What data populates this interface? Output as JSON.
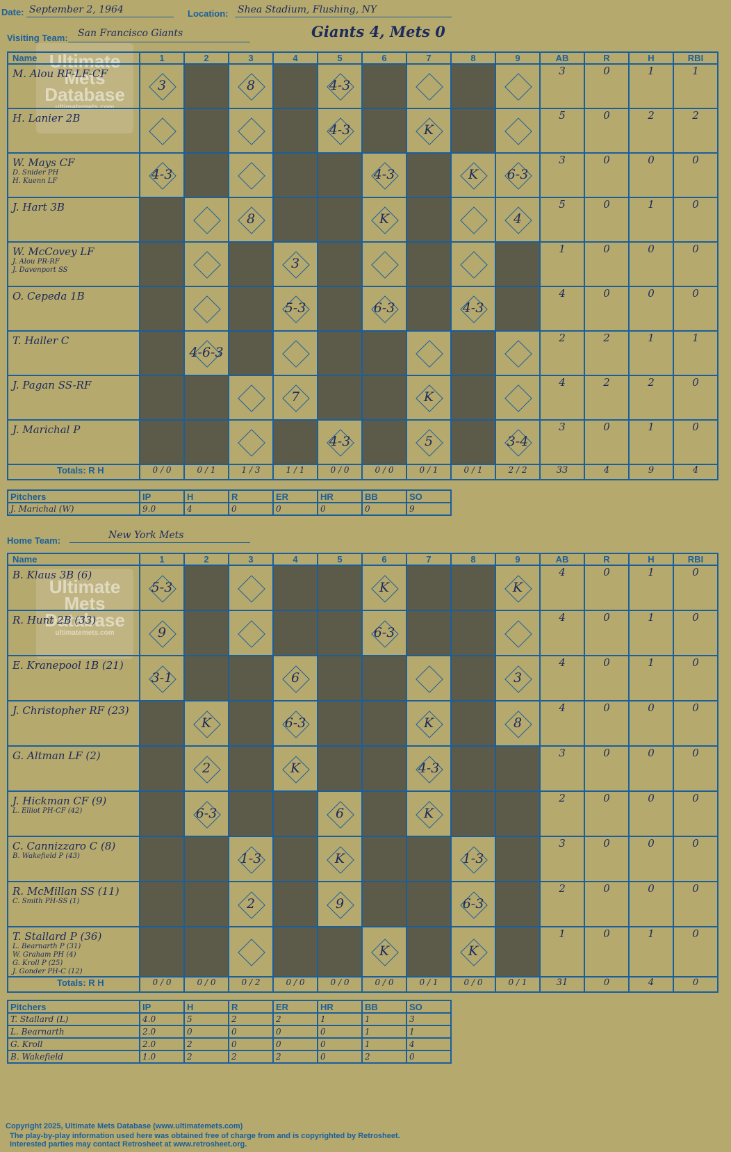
{
  "header": {
    "date_label": "Date:",
    "date": "September 2, 1964",
    "location_label": "Location:",
    "location": "Shea Stadium, Flushing, NY",
    "visiting_label": "Visiting Team:",
    "visiting_team": "San Francisco Giants",
    "headline": "Giants 4, Mets 0",
    "home_label": "Home Team:",
    "home_team": "New York Mets"
  },
  "watermark": {
    "line1": "Ultimate",
    "line2": "Mets",
    "line3": "Database",
    "url": "ultimatemets.com"
  },
  "columns": {
    "name": "Name",
    "innings": [
      "1",
      "2",
      "3",
      "4",
      "5",
      "6",
      "7",
      "8",
      "9"
    ],
    "stats": [
      "AB",
      "R",
      "H",
      "RBI"
    ],
    "totals": "Totals:",
    "r": "R",
    "h": "H"
  },
  "visitors": {
    "rows": [
      {
        "name": "M. Alou RF-LF-CF",
        "subs": [],
        "dark": [
          2,
          4,
          6,
          8
        ],
        "cells": {
          "1": "3",
          "3": "8",
          "5": "4-3"
        },
        "ab": "3",
        "r": "0",
        "h": "1",
        "rbi": "1"
      },
      {
        "name": "H. Lanier 2B",
        "subs": [],
        "dark": [
          2,
          4,
          6,
          8
        ],
        "cells": {
          "5": "4-3",
          "7": "K"
        },
        "ab": "5",
        "r": "0",
        "h": "2",
        "rbi": "2"
      },
      {
        "name": "W. Mays CF",
        "subs": [
          "D. Snider PH",
          "H. Kuenn LF"
        ],
        "dark": [
          2,
          4,
          5,
          7
        ],
        "cells": {
          "1": "4-3",
          "6": "4-3",
          "8": "K",
          "9": "6-3"
        },
        "ab": "3",
        "r": "0",
        "h": "0",
        "rbi": "0"
      },
      {
        "name": "J. Hart 3B",
        "subs": [],
        "dark": [
          1,
          4,
          5,
          7
        ],
        "cells": {
          "3": "8",
          "6": "K",
          "9": "4"
        },
        "ab": "5",
        "r": "0",
        "h": "1",
        "rbi": "0"
      },
      {
        "name": "W. McCovey LF",
        "subs": [
          "J. Alou PR-RF",
          "J. Davenport SS"
        ],
        "dark": [
          1,
          3,
          5,
          7,
          9
        ],
        "cells": {
          "4": "3"
        },
        "ab": "1",
        "r": "0",
        "h": "0",
        "rbi": "0"
      },
      {
        "name": "O. Cepeda 1B",
        "subs": [],
        "dark": [
          1,
          3,
          5,
          7,
          9
        ],
        "cells": {
          "4": "5-3",
          "6": "6-3",
          "8": "4-3"
        },
        "ab": "4",
        "r": "0",
        "h": "0",
        "rbi": "0"
      },
      {
        "name": "T. Haller C",
        "subs": [],
        "dark": [
          1,
          3,
          5,
          6,
          8
        ],
        "cells": {
          "2": "4-6-3"
        },
        "ab": "2",
        "r": "2",
        "h": "1",
        "rbi": "1"
      },
      {
        "name": "J. Pagan SS-RF",
        "subs": [],
        "dark": [
          1,
          2,
          5,
          6,
          8
        ],
        "cells": {
          "4": "7",
          "7": "K"
        },
        "ab": "4",
        "r": "2",
        "h": "2",
        "rbi": "0"
      },
      {
        "name": "J. Marichal P",
        "subs": [],
        "dark": [
          1,
          2,
          4,
          6,
          8
        ],
        "cells": {
          "5": "4-3",
          "7": "5",
          "9": "3-4"
        },
        "ab": "3",
        "r": "0",
        "h": "1",
        "rbi": "0"
      }
    ],
    "totals": [
      [
        "0",
        "0"
      ],
      [
        "0",
        "1"
      ],
      [
        "1",
        "3"
      ],
      [
        "1",
        "1"
      ],
      [
        "0",
        "0"
      ],
      [
        "0",
        "0"
      ],
      [
        "0",
        "1"
      ],
      [
        "0",
        "1"
      ],
      [
        "2",
        "2"
      ]
    ],
    "stat_totals": [
      "33",
      "4",
      "9",
      "4"
    ]
  },
  "visitor_pitchers": {
    "header": [
      "Pitchers",
      "IP",
      "H",
      "R",
      "ER",
      "HR",
      "BB",
      "SO"
    ],
    "rows": [
      [
        "J. Marichal (W)",
        "9.0",
        "4",
        "0",
        "0",
        "0",
        "0",
        "9"
      ]
    ]
  },
  "home": {
    "rows": [
      {
        "name": "B. Klaus 3B (6)",
        "subs": [],
        "dark": [
          2,
          4,
          5,
          7,
          8
        ],
        "cells": {
          "1": "5-3",
          "6": "K",
          "9": "K"
        },
        "ab": "4",
        "r": "0",
        "h": "1",
        "rbi": "0"
      },
      {
        "name": "R. Hunt 2B (33)",
        "subs": [],
        "dark": [
          2,
          4,
          5,
          7,
          8
        ],
        "cells": {
          "1": "9",
          "6": "6-3"
        },
        "ab": "4",
        "r": "0",
        "h": "1",
        "rbi": "0"
      },
      {
        "name": "E. Kranepool 1B (21)",
        "subs": [],
        "dark": [
          2,
          3,
          5,
          6,
          8
        ],
        "cells": {
          "1": "3-1",
          "4": "6",
          "9": "3"
        },
        "ab": "4",
        "r": "0",
        "h": "1",
        "rbi": "0"
      },
      {
        "name": "J. Christopher RF (23)",
        "subs": [],
        "dark": [
          1,
          3,
          5,
          6,
          8
        ],
        "cells": {
          "2": "K",
          "4": "6-3",
          "7": "K",
          "9": "8"
        },
        "ab": "4",
        "r": "0",
        "h": "0",
        "rbi": "0"
      },
      {
        "name": "G. Altman LF (2)",
        "subs": [],
        "dark": [
          1,
          3,
          5,
          6,
          8,
          9
        ],
        "cells": {
          "2": "2",
          "4": "K",
          "7": "4-3"
        },
        "ab": "3",
        "r": "0",
        "h": "0",
        "rbi": "0"
      },
      {
        "name": "J. Hickman CF (9)",
        "subs": [
          "L. Elliot PH-CF (42)"
        ],
        "dark": [
          1,
          3,
          4,
          6,
          8,
          9
        ],
        "cells": {
          "2": "6-3",
          "5": "6",
          "7": "K"
        },
        "ab": "2",
        "r": "0",
        "h": "0",
        "rbi": "0"
      },
      {
        "name": "C. Cannizzaro C (8)",
        "subs": [
          "B. Wakefield P (43)"
        ],
        "dark": [
          1,
          2,
          4,
          6,
          7,
          9
        ],
        "cells": {
          "3": "1-3",
          "5": "K",
          "8": "1-3"
        },
        "ab": "3",
        "r": "0",
        "h": "0",
        "rbi": "0"
      },
      {
        "name": "R. McMillan SS (11)",
        "subs": [
          "C. Smith PH-SS (1)"
        ],
        "dark": [
          1,
          2,
          4,
          6,
          7,
          9
        ],
        "cells": {
          "3": "2",
          "5": "9",
          "8": "6-3"
        },
        "ab": "2",
        "r": "0",
        "h": "0",
        "rbi": "0"
      },
      {
        "name": "T. Stallard P (36)",
        "subs": [
          "L. Bearnarth P (31)",
          "W. Graham PH (4)",
          "G. Kroll P (25)",
          "J. Gonder PH-C (12)"
        ],
        "dark": [
          1,
          2,
          4,
          5,
          7,
          9
        ],
        "cells": {
          "6": "K",
          "8": "K"
        },
        "ab": "1",
        "r": "0",
        "h": "1",
        "rbi": "0"
      }
    ],
    "totals": [
      [
        "0",
        "0"
      ],
      [
        "0",
        "0"
      ],
      [
        "0",
        "2"
      ],
      [
        "0",
        "0"
      ],
      [
        "0",
        "0"
      ],
      [
        "0",
        "0"
      ],
      [
        "0",
        "1"
      ],
      [
        "0",
        "0"
      ],
      [
        "0",
        "1"
      ]
    ],
    "stat_totals": [
      "31",
      "0",
      "4",
      "0"
    ]
  },
  "home_pitchers": {
    "header": [
      "Pitchers",
      "IP",
      "H",
      "R",
      "ER",
      "HR",
      "BB",
      "SO"
    ],
    "rows": [
      [
        "T. Stallard (L)",
        "4.0",
        "5",
        "2",
        "2",
        "1",
        "1",
        "3"
      ],
      [
        "L. Bearnarth",
        "2.0",
        "0",
        "0",
        "0",
        "0",
        "1",
        "1"
      ],
      [
        "G. Kroll",
        "2.0",
        "2",
        "0",
        "0",
        "0",
        "1",
        "4"
      ],
      [
        "B. Wakefield",
        "1.0",
        "2",
        "2",
        "2",
        "0",
        "2",
        "0"
      ]
    ]
  },
  "footer": {
    "line1": "Copyright 2025, Ultimate Mets Database (www.ultimatemets.com)",
    "line2": "The play-by-play information used here was obtained free of charge from and is copyrighted by Retrosheet.",
    "line3": "Interested parties may contact Retrosheet at www.retrosheet.org."
  }
}
